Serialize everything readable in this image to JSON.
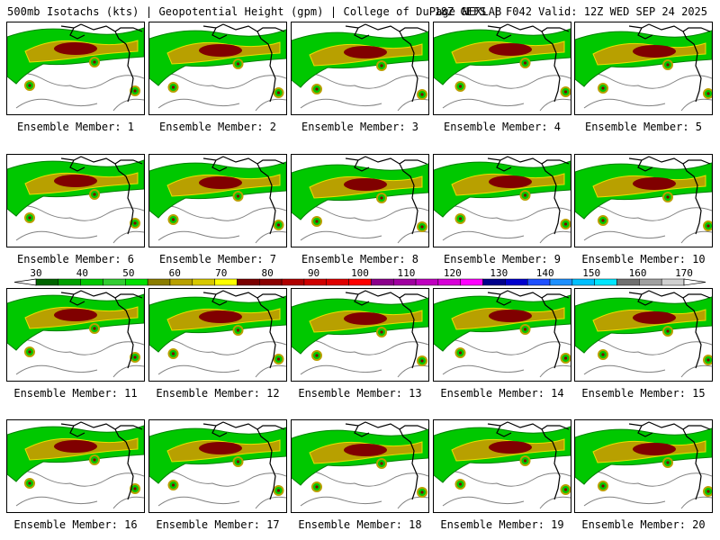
{
  "header": {
    "left": "500mb Isotachs (kts) | Geopotential Height (gpm) | College of DuPage NEXLAB",
    "right": "18Z GEFS | F042 Valid: 12Z WED SEP 24 2025"
  },
  "panels": [
    {
      "label": "Ensemble Member: 1"
    },
    {
      "label": "Ensemble Member: 2"
    },
    {
      "label": "Ensemble Member: 3"
    },
    {
      "label": "Ensemble Member: 4"
    },
    {
      "label": "Ensemble Member: 5"
    },
    {
      "label": "Ensemble Member: 6"
    },
    {
      "label": "Ensemble Member: 7"
    },
    {
      "label": "Ensemble Member: 8"
    },
    {
      "label": "Ensemble Member: 9"
    },
    {
      "label": "Ensemble Member: 10"
    },
    {
      "label": "Ensemble Member: 11"
    },
    {
      "label": "Ensemble Member: 12"
    },
    {
      "label": "Ensemble Member: 13"
    },
    {
      "label": "Ensemble Member: 14"
    },
    {
      "label": "Ensemble Member: 15"
    },
    {
      "label": "Ensemble Member: 16"
    },
    {
      "label": "Ensemble Member: 17"
    },
    {
      "label": "Ensemble Member: 18"
    },
    {
      "label": "Ensemble Member: 19"
    },
    {
      "label": "Ensemble Member: 20"
    }
  ],
  "colorbar": {
    "tick_labels": [
      "30",
      "40",
      "50",
      "60",
      "70",
      "80",
      "90",
      "100",
      "110",
      "120",
      "130",
      "140",
      "150",
      "160",
      "170"
    ],
    "colors": [
      "#006400",
      "#00a000",
      "#00c800",
      "#32cd32",
      "#00e000",
      "#8b7d00",
      "#b8a000",
      "#d8c800",
      "#ffff00",
      "#7a0000",
      "#8b0000",
      "#b00000",
      "#d00000",
      "#e00000",
      "#ff0000",
      "#8b008b",
      "#a000a0",
      "#c000c0",
      "#d800d8",
      "#ff00ff",
      "#00008b",
      "#0000cd",
      "#1e50ff",
      "#1e90ff",
      "#00bfff",
      "#00e5ff",
      "#707070",
      "#a0a0a0",
      "#d0d0d0"
    ]
  },
  "map_colors": {
    "light_green": "#00c800",
    "dark_green": "#008000",
    "gold": "#b8a000",
    "yellow": "#e8e000",
    "maroon": "#800000",
    "height_contour": "#808080",
    "coastline": "#000000"
  }
}
